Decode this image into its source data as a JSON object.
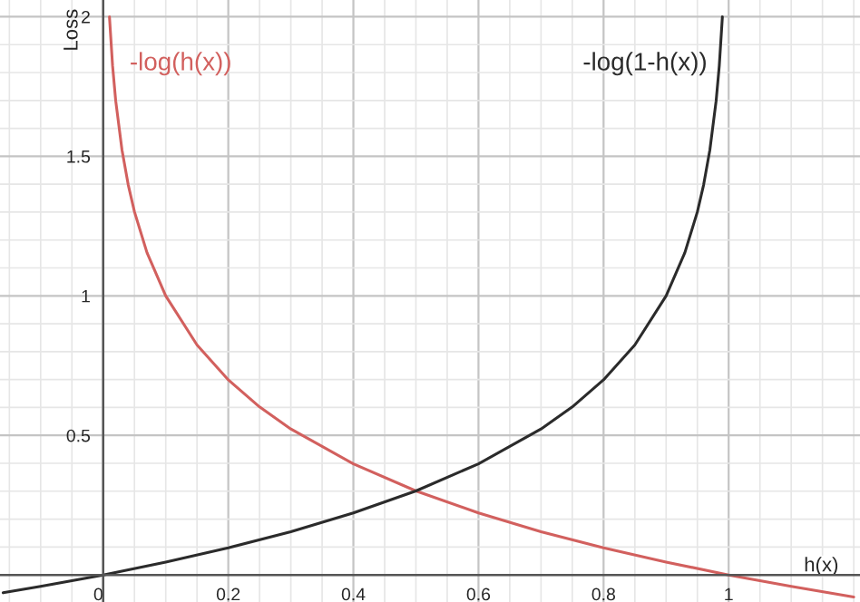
{
  "chart_data": {
    "type": "line",
    "xlabel": "h(x)",
    "ylabel": "Loss",
    "xlim": [
      -0.165,
      1.21
    ],
    "ylim": [
      -0.097,
      2.06
    ],
    "xticks": [
      {
        "value": -0.15,
        "label": null
      },
      {
        "value": -0.1,
        "label": null
      },
      {
        "value": -0.05,
        "label": null
      },
      0,
      {
        "value": 0.05,
        "label": null
      },
      {
        "value": 0.1,
        "label": null
      },
      {
        "value": 0.15,
        "label": null
      },
      0.2,
      {
        "value": 0.25,
        "label": null
      },
      {
        "value": 0.3,
        "label": null
      },
      {
        "value": 0.35,
        "label": null
      },
      0.4,
      {
        "value": 0.45,
        "label": null
      },
      {
        "value": 0.5,
        "label": null
      },
      {
        "value": 0.55,
        "label": null
      },
      0.6,
      {
        "value": 0.65,
        "label": null
      },
      {
        "value": 0.7,
        "label": null
      },
      {
        "value": 0.75,
        "label": null
      },
      0.8,
      {
        "value": 0.85,
        "label": null
      },
      {
        "value": 0.9,
        "label": null
      },
      {
        "value": 0.95,
        "label": null
      },
      1,
      {
        "value": 1.05,
        "label": null
      },
      {
        "value": 1.1,
        "label": null
      },
      {
        "value": 1.15,
        "label": null
      },
      {
        "value": 1.2,
        "label": null
      }
    ],
    "yticks": [
      {
        "value": 0,
        "label": null
      },
      {
        "value": 0.1,
        "label": null
      },
      {
        "value": 0.2,
        "label": null
      },
      {
        "value": 0.3,
        "label": null
      },
      {
        "value": 0.4,
        "label": null
      },
      0.5,
      {
        "value": 0.6,
        "label": null
      },
      {
        "value": 0.7,
        "label": null
      },
      {
        "value": 0.8,
        "label": null
      },
      {
        "value": 0.9,
        "label": null
      },
      1,
      {
        "value": 1.1,
        "label": null
      },
      {
        "value": 1.2,
        "label": null
      },
      {
        "value": 1.3,
        "label": null
      },
      {
        "value": 1.4,
        "label": null
      },
      1.5,
      {
        "value": 1.6,
        "label": null
      },
      {
        "value": 1.7,
        "label": null
      },
      {
        "value": 1.8,
        "label": null
      },
      {
        "value": 1.9,
        "label": null
      },
      2
    ],
    "grid": true,
    "marker": "none",
    "line_style": "solid",
    "series": [
      {
        "name": "-log(h(x))",
        "color": "#d2605e",
        "x": [
          0.01,
          0.015,
          0.02,
          0.03,
          0.04,
          0.05,
          0.07,
          0.1,
          0.15,
          0.2,
          0.25,
          0.3,
          0.4,
          0.5,
          0.6,
          0.7,
          0.8,
          0.9,
          1.0,
          1.1,
          1.2
        ],
        "values": [
          2.0,
          1.824,
          1.699,
          1.523,
          1.398,
          1.301,
          1.155,
          1.0,
          0.824,
          0.699,
          0.602,
          0.523,
          0.398,
          0.301,
          0.222,
          0.155,
          0.097,
          0.046,
          0,
          -0.041,
          -0.079
        ]
      },
      {
        "name": "-log(1-h(x))",
        "color": "#2b2b2b",
        "x": [
          -0.16,
          -0.1,
          0,
          0.1,
          0.2,
          0.3,
          0.4,
          0.5,
          0.6,
          0.7,
          0.75,
          0.8,
          0.85,
          0.9,
          0.93,
          0.95,
          0.96,
          0.97,
          0.98,
          0.985,
          0.99
        ],
        "values": [
          -0.064,
          -0.041,
          0,
          0.046,
          0.097,
          0.155,
          0.222,
          0.301,
          0.398,
          0.523,
          0.602,
          0.699,
          0.824,
          1.0,
          1.155,
          1.301,
          1.398,
          1.523,
          1.699,
          1.824,
          2.0
        ]
      }
    ]
  }
}
